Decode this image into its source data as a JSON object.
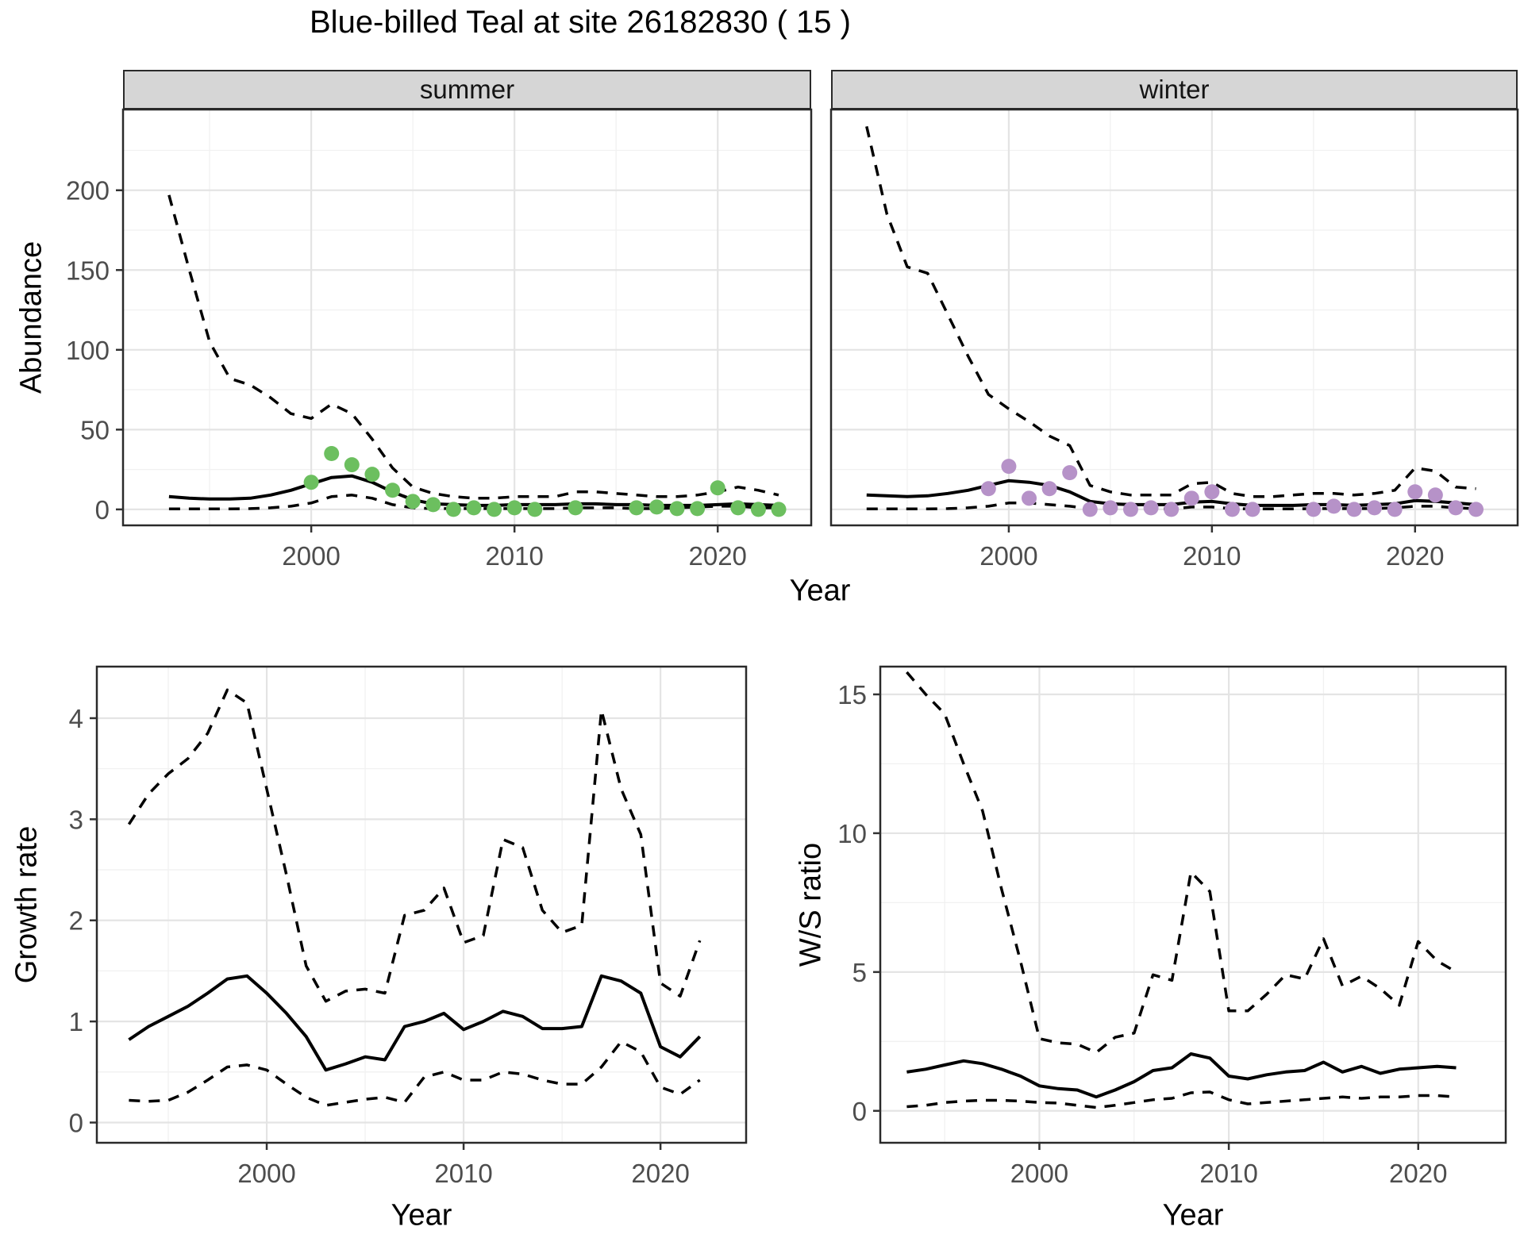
{
  "title": "Blue-billed Teal at site 26182830 ( 15 )",
  "axes": {
    "abundance": "Abundance",
    "year": "Year",
    "growth": "Growth rate",
    "ws": "W/S ratio"
  },
  "colors": {
    "summer_point": "#6cbf5f",
    "winter_point": "#b692c8",
    "line": "#000000",
    "grid_major": "#e4e4e4",
    "grid_minor": "#f1f1f1",
    "strip_bg": "#d6d6d6",
    "panel_border": "#2a2a2a",
    "axis_text": "#4d4d4d",
    "tick_mark": "#333333"
  },
  "chart_data": [
    {
      "type": "line",
      "facet_label": "summer",
      "xlabel": "Year",
      "ylabel": "Abundance",
      "xlim": [
        1990.74,
        2024.6
      ],
      "ylim": [
        -10,
        250.6
      ],
      "xticks": [
        2000,
        2010,
        2020
      ],
      "yticks": [
        0,
        50,
        100,
        150,
        200
      ],
      "x_minor": [
        1995,
        2005,
        2015
      ],
      "y_minor": [
        25,
        75,
        125,
        175,
        225
      ],
      "series": [
        {
          "name": "ci_upper",
          "style": "dashed",
          "x": [
            1993,
            1994,
            1995,
            1996,
            1997,
            1998,
            1999,
            2000,
            2001,
            2002,
            2003,
            2004,
            2005,
            2006,
            2007,
            2008,
            2009,
            2010,
            2011,
            2012,
            2013,
            2014,
            2015,
            2016,
            2017,
            2018,
            2019,
            2020,
            2021,
            2022,
            2023
          ],
          "y": [
            197,
            150,
            105,
            82,
            78,
            70,
            60,
            57,
            66,
            60,
            44,
            26,
            14,
            10,
            8,
            7,
            7,
            8,
            8,
            8,
            11,
            11,
            10,
            9,
            8,
            8,
            9,
            11,
            14,
            12,
            9
          ]
        },
        {
          "name": "fit_mean",
          "style": "solid",
          "x": [
            1993,
            1994,
            1995,
            1996,
            1997,
            1998,
            1999,
            2000,
            2001,
            2002,
            2003,
            2004,
            2005,
            2006,
            2007,
            2008,
            2009,
            2010,
            2011,
            2012,
            2013,
            2014,
            2015,
            2016,
            2017,
            2018,
            2019,
            2020,
            2021,
            2022,
            2023
          ],
          "y": [
            8,
            7,
            6.5,
            6.5,
            7,
            9,
            12,
            16,
            20,
            21,
            17,
            11,
            6,
            3.5,
            3,
            2.5,
            2.5,
            3,
            3,
            3,
            3.5,
            3.5,
            3,
            3,
            2.5,
            2.5,
            2.5,
            3,
            3.5,
            3,
            2.5
          ]
        },
        {
          "name": "ci_lower",
          "style": "dashed",
          "x": [
            1993,
            1994,
            1995,
            1996,
            1997,
            1998,
            1999,
            2000,
            2001,
            2002,
            2003,
            2004,
            2005,
            2006,
            2007,
            2008,
            2009,
            2010,
            2011,
            2012,
            2013,
            2014,
            2015,
            2016,
            2017,
            2018,
            2019,
            2020,
            2021,
            2022,
            2023
          ],
          "y": [
            0.3,
            0.3,
            0.3,
            0.3,
            0.5,
            1,
            2,
            4,
            8,
            9,
            7,
            3,
            1,
            0.5,
            0.5,
            0.5,
            0.5,
            0.5,
            0.5,
            0.5,
            1,
            1,
            1,
            0.5,
            0.5,
            1,
            1.5,
            2,
            2,
            1,
            1
          ]
        },
        {
          "name": "observations",
          "style": "points",
          "color_key": "summer_point",
          "x": [
            2000,
            2001,
            2002,
            2003,
            2004,
            2005,
            2006,
            2007,
            2008,
            2009,
            2010,
            2011,
            2013,
            2016,
            2017,
            2018,
            2019,
            2020,
            2021,
            2022,
            2023
          ],
          "y": [
            17,
            35,
            28,
            22,
            12,
            5,
            3,
            0,
            1,
            0,
            1,
            0,
            1,
            1,
            1.5,
            0.5,
            0.5,
            13.5,
            1,
            0,
            0
          ]
        }
      ]
    },
    {
      "type": "line",
      "facet_label": "winter",
      "xlabel": "Year",
      "ylabel": "Abundance",
      "xlim": [
        1991.25,
        2025.05
      ],
      "ylim": [
        -10,
        250.6
      ],
      "xticks": [
        2000,
        2010,
        2020
      ],
      "yticks": [
        0,
        50,
        100,
        150,
        200
      ],
      "x_minor": [
        1995,
        2005,
        2015
      ],
      "y_minor": [
        25,
        75,
        125,
        175,
        225
      ],
      "series": [
        {
          "name": "ci_upper",
          "style": "dashed",
          "x": [
            1993,
            1994,
            1995,
            1996,
            1997,
            1998,
            1999,
            2000,
            2001,
            2002,
            2003,
            2004,
            2005,
            2006,
            2007,
            2008,
            2009,
            2010,
            2011,
            2012,
            2013,
            2014,
            2015,
            2016,
            2017,
            2018,
            2019,
            2020,
            2021,
            2022,
            2023
          ],
          "y": [
            240,
            185,
            152,
            148,
            122,
            96,
            72,
            63,
            55,
            46,
            40,
            15,
            11,
            9,
            9,
            9,
            16,
            17,
            10,
            8,
            8,
            9,
            10,
            10,
            9,
            10,
            12,
            26,
            24,
            14,
            13
          ]
        },
        {
          "name": "fit_mean",
          "style": "solid",
          "x": [
            1993,
            1994,
            1995,
            1996,
            1997,
            1998,
            1999,
            2000,
            2001,
            2002,
            2003,
            2004,
            2005,
            2006,
            2007,
            2008,
            2009,
            2010,
            2011,
            2012,
            2013,
            2014,
            2015,
            2016,
            2017,
            2018,
            2019,
            2020,
            2021,
            2022,
            2023
          ],
          "y": [
            9,
            8.5,
            8,
            8.5,
            10,
            12,
            15,
            18,
            17,
            15,
            11,
            5,
            3.5,
            3,
            3,
            3,
            4.5,
            5,
            3.5,
            2.5,
            2.5,
            2.5,
            3,
            3,
            2.5,
            3,
            3.5,
            5.5,
            5,
            4,
            3
          ]
        },
        {
          "name": "ci_lower",
          "style": "dashed",
          "x": [
            1993,
            1994,
            1995,
            1996,
            1997,
            1998,
            1999,
            2000,
            2001,
            2002,
            2003,
            2004,
            2005,
            2006,
            2007,
            2008,
            2009,
            2010,
            2011,
            2012,
            2013,
            2014,
            2015,
            2016,
            2017,
            2018,
            2019,
            2020,
            2021,
            2022,
            2023
          ],
          "y": [
            0.3,
            0.3,
            0.3,
            0.3,
            0.5,
            1,
            2,
            4,
            4,
            3,
            2,
            0.5,
            0.3,
            0.3,
            0.3,
            0.3,
            1.5,
            1.5,
            0.5,
            0.3,
            0.3,
            0.3,
            0.5,
            0.5,
            0.5,
            0.5,
            1,
            2,
            2,
            1,
            0.5
          ]
        },
        {
          "name": "observations",
          "style": "points",
          "color_key": "winter_point",
          "x": [
            1999,
            2000,
            2001,
            2002,
            2003,
            2004,
            2005,
            2006,
            2007,
            2008,
            2009,
            2010,
            2011,
            2012,
            2015,
            2016,
            2017,
            2018,
            2019,
            2020,
            2021,
            2022,
            2023
          ],
          "y": [
            13,
            27,
            7,
            13,
            23,
            0,
            1,
            0,
            1,
            0,
            7,
            11,
            0,
            0,
            0,
            2,
            0,
            1,
            0,
            11,
            9,
            1,
            0
          ]
        }
      ]
    },
    {
      "type": "line",
      "facet_label": "",
      "xlabel": "Year",
      "ylabel": "Growth rate",
      "xlim": [
        1991.37,
        2024.35
      ],
      "ylim": [
        -0.2,
        4.51
      ],
      "xticks": [
        2000,
        2010,
        2020
      ],
      "yticks": [
        0,
        1,
        2,
        3,
        4
      ],
      "x_minor": [
        1995,
        2005,
        2015
      ],
      "y_minor": [
        0.5,
        1.5,
        2.5,
        3.5
      ],
      "series": [
        {
          "name": "ci_upper",
          "style": "dashed",
          "x": [
            1993,
            1994,
            1995,
            1996,
            1997,
            1998,
            1999,
            2000,
            2001,
            2002,
            2003,
            2004,
            2005,
            2006,
            2007,
            2008,
            2009,
            2010,
            2011,
            2012,
            2013,
            2014,
            2015,
            2016,
            2017,
            2018,
            2019,
            2020,
            2021,
            2022
          ],
          "y": [
            2.95,
            3.25,
            3.45,
            3.6,
            3.85,
            4.28,
            4.15,
            3.3,
            2.45,
            1.55,
            1.2,
            1.3,
            1.32,
            1.28,
            2.05,
            2.1,
            2.32,
            1.78,
            1.85,
            2.8,
            2.72,
            2.1,
            1.88,
            1.95,
            4.08,
            3.3,
            2.85,
            1.38,
            1.25,
            1.8
          ]
        },
        {
          "name": "fit_mean",
          "style": "solid",
          "x": [
            1993,
            1994,
            1995,
            1996,
            1997,
            1998,
            1999,
            2000,
            2001,
            2002,
            2003,
            2004,
            2005,
            2006,
            2007,
            2008,
            2009,
            2010,
            2011,
            2012,
            2013,
            2014,
            2015,
            2016,
            2017,
            2018,
            2019,
            2020,
            2021,
            2022
          ],
          "y": [
            0.82,
            0.95,
            1.05,
            1.15,
            1.28,
            1.42,
            1.45,
            1.28,
            1.08,
            0.85,
            0.52,
            0.58,
            0.65,
            0.62,
            0.95,
            1.0,
            1.08,
            0.92,
            1.0,
            1.1,
            1.05,
            0.93,
            0.93,
            0.95,
            1.45,
            1.4,
            1.28,
            0.75,
            0.65,
            0.85
          ]
        },
        {
          "name": "ci_lower",
          "style": "dashed",
          "x": [
            1993,
            1994,
            1995,
            1996,
            1997,
            1998,
            1999,
            2000,
            2001,
            2002,
            2003,
            2004,
            2005,
            2006,
            2007,
            2008,
            2009,
            2010,
            2011,
            2012,
            2013,
            2014,
            2015,
            2016,
            2017,
            2018,
            2019,
            2020,
            2021,
            2022
          ],
          "y": [
            0.22,
            0.21,
            0.22,
            0.3,
            0.42,
            0.55,
            0.57,
            0.52,
            0.38,
            0.25,
            0.17,
            0.2,
            0.23,
            0.25,
            0.2,
            0.45,
            0.5,
            0.42,
            0.42,
            0.5,
            0.48,
            0.42,
            0.38,
            0.38,
            0.55,
            0.8,
            0.7,
            0.35,
            0.28,
            0.42
          ]
        }
      ]
    },
    {
      "type": "line",
      "facet_label": "",
      "xlabel": "Year",
      "ylabel": "W/S ratio",
      "xlim": [
        1991.6,
        2024.62
      ],
      "ylim": [
        -1.15,
        16.0
      ],
      "xticks": [
        2000,
        2010,
        2020
      ],
      "yticks": [
        0,
        5,
        10,
        15
      ],
      "x_minor": [
        1995,
        2005,
        2015
      ],
      "y_minor": [
        2.5,
        7.5,
        12.5
      ],
      "series": [
        {
          "name": "ci_upper",
          "style": "dashed",
          "x": [
            1993,
            1994,
            1995,
            1996,
            1997,
            1998,
            1999,
            2000,
            2001,
            2002,
            2003,
            2004,
            2005,
            2006,
            2007,
            2008,
            2009,
            2010,
            2011,
            2012,
            2013,
            2014,
            2015,
            2016,
            2017,
            2018,
            2019,
            2020,
            2021,
            2022
          ],
          "y": [
            15.8,
            15.0,
            14.3,
            12.5,
            10.8,
            8.0,
            5.4,
            2.6,
            2.45,
            2.4,
            2.1,
            2.65,
            2.8,
            4.9,
            4.7,
            8.6,
            7.9,
            3.6,
            3.6,
            4.2,
            4.9,
            4.75,
            6.2,
            4.5,
            4.85,
            4.4,
            3.8,
            6.1,
            5.4,
            5.0
          ]
        },
        {
          "name": "fit_mean",
          "style": "solid",
          "x": [
            1993,
            1994,
            1995,
            1996,
            1997,
            1998,
            1999,
            2000,
            2001,
            2002,
            2003,
            2004,
            2005,
            2006,
            2007,
            2008,
            2009,
            2010,
            2011,
            2012,
            2013,
            2014,
            2015,
            2016,
            2017,
            2018,
            2019,
            2020,
            2021,
            2022
          ],
          "y": [
            1.4,
            1.5,
            1.65,
            1.8,
            1.7,
            1.5,
            1.25,
            0.9,
            0.8,
            0.75,
            0.5,
            0.75,
            1.05,
            1.45,
            1.55,
            2.05,
            1.9,
            1.25,
            1.15,
            1.3,
            1.4,
            1.45,
            1.75,
            1.4,
            1.6,
            1.35,
            1.5,
            1.55,
            1.6,
            1.55
          ]
        },
        {
          "name": "ci_lower",
          "style": "dashed",
          "x": [
            1993,
            1994,
            1995,
            1996,
            1997,
            1998,
            1999,
            2000,
            2001,
            2002,
            2003,
            2004,
            2005,
            2006,
            2007,
            2008,
            2009,
            2010,
            2011,
            2012,
            2013,
            2014,
            2015,
            2016,
            2017,
            2018,
            2019,
            2020,
            2021,
            2022
          ],
          "y": [
            0.15,
            0.2,
            0.3,
            0.35,
            0.38,
            0.38,
            0.35,
            0.3,
            0.28,
            0.2,
            0.12,
            0.2,
            0.3,
            0.4,
            0.45,
            0.65,
            0.68,
            0.4,
            0.25,
            0.3,
            0.35,
            0.4,
            0.45,
            0.5,
            0.45,
            0.5,
            0.5,
            0.55,
            0.55,
            0.5
          ]
        }
      ]
    }
  ]
}
